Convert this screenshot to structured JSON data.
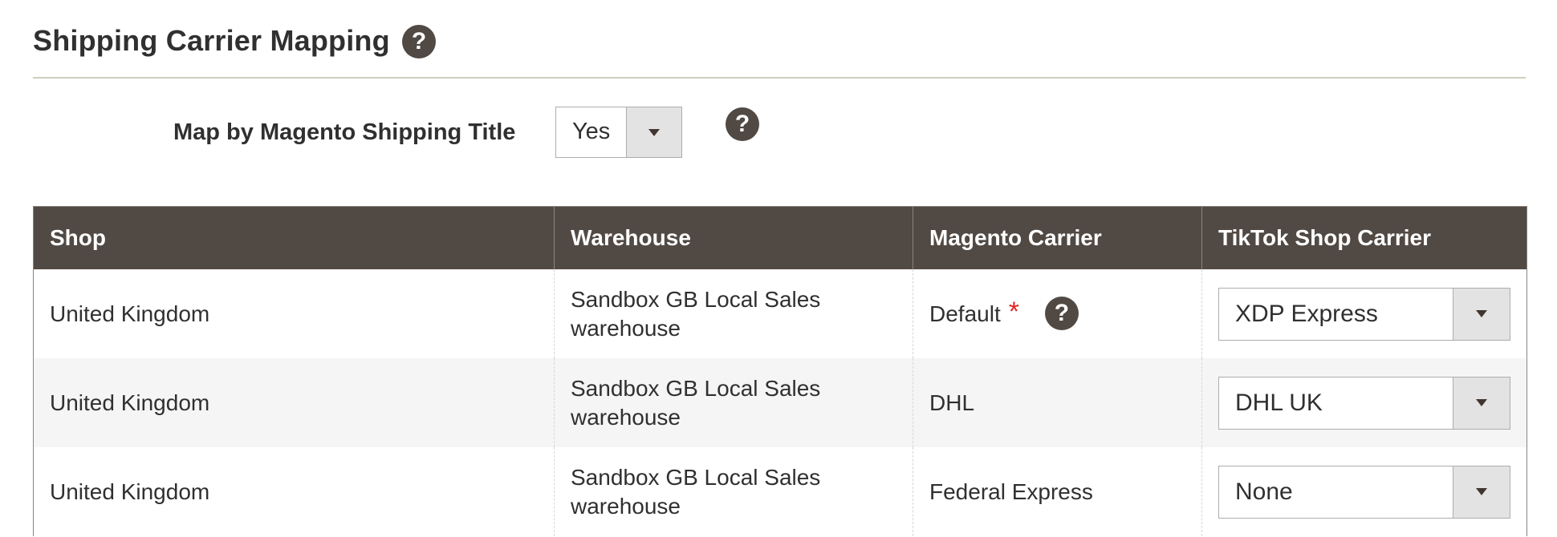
{
  "section": {
    "title": "Shipping Carrier Mapping",
    "help_icon": "question-circle-icon"
  },
  "map_by_title": {
    "label": "Map by Magento Shipping Title",
    "value": "Yes",
    "help_icon": "question-circle-icon"
  },
  "table": {
    "headers": [
      "Shop",
      "Warehouse",
      "Magento Carrier",
      "TikTok Shop Carrier"
    ],
    "rows": [
      {
        "shop": "United Kingdom",
        "warehouse_line1": "Sandbox GB Local Sales",
        "warehouse_line2": "warehouse",
        "magento_carrier": "Default",
        "required_mark": "*",
        "tiktok_carrier": "XDP Express"
      },
      {
        "shop": "United Kingdom",
        "warehouse_line1": "Sandbox GB Local Sales",
        "warehouse_line2": "warehouse",
        "magento_carrier": "DHL",
        "tiktok_carrier": "DHL UK"
      },
      {
        "shop": "United Kingdom",
        "warehouse_line1": "Sandbox GB Local Sales",
        "warehouse_line2": "warehouse",
        "magento_carrier": "Federal Express",
        "tiktok_carrier": "None"
      }
    ]
  },
  "colors": {
    "header_bg": "#514943",
    "required": "#e22626",
    "alt_row": "#f5f5f5"
  }
}
